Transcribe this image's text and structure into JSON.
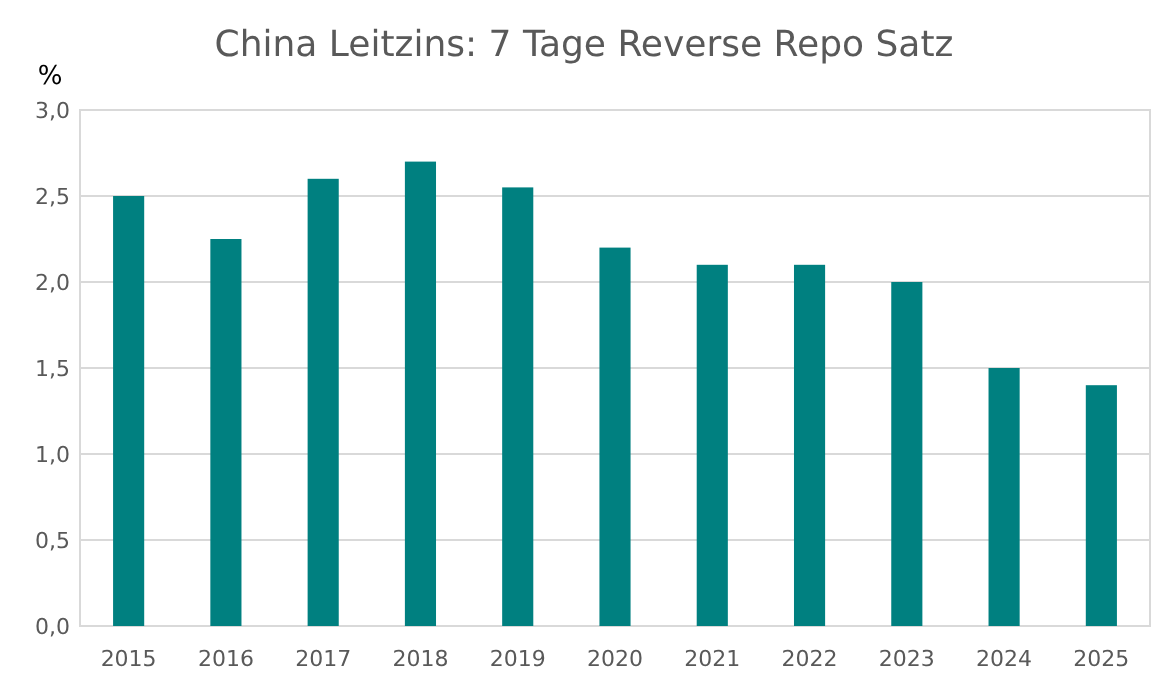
{
  "chart_data": {
    "type": "bar",
    "title": "China Leitzins: 7 Tage Reverse Repo Satz",
    "ylabel": "%",
    "categories": [
      "2015",
      "2016",
      "2017",
      "2018",
      "2019",
      "2020",
      "2021",
      "2022",
      "2023",
      "2024",
      "2025"
    ],
    "values": [
      2.5,
      2.25,
      2.6,
      2.7,
      2.55,
      2.2,
      2.1,
      2.1,
      2.0,
      1.5,
      1.4
    ],
    "color": "#008080",
    "ylim": [
      0,
      3
    ],
    "yticks": [
      {
        "value": 0,
        "label": "0,0"
      },
      {
        "value": 0.5,
        "label": "0,5"
      },
      {
        "value": 1,
        "label": "1,0"
      },
      {
        "value": 1.5,
        "label": "1,5"
      },
      {
        "value": 2,
        "label": "2,0"
      },
      {
        "value": 2.5,
        "label": "2,5"
      },
      {
        "value": 3,
        "label": "3,0"
      }
    ],
    "grid": "y"
  }
}
